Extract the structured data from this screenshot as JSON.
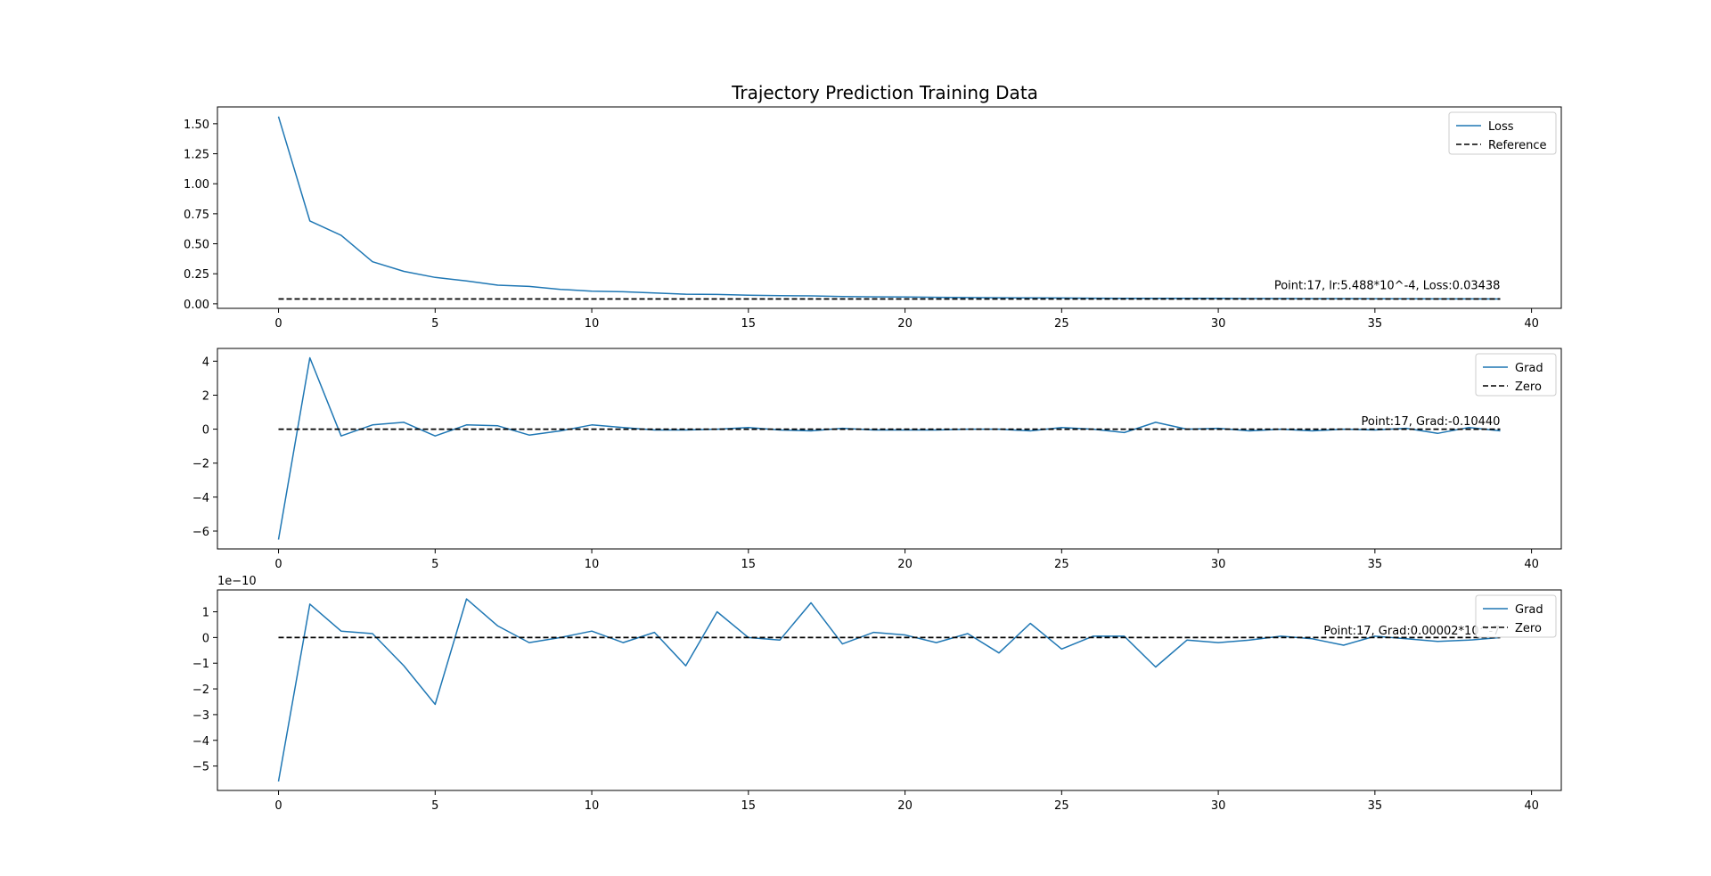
{
  "figure": {
    "title": "Trajectory Prediction Training Data"
  },
  "colors": {
    "series": "#1f77b4",
    "reference": "#000000",
    "axes": "#000000",
    "background": "#ffffff"
  },
  "chart_data": [
    {
      "type": "line",
      "x": [
        0,
        1,
        2,
        3,
        4,
        5,
        6,
        7,
        8,
        9,
        10,
        11,
        12,
        13,
        14,
        15,
        16,
        17,
        18,
        19,
        20,
        21,
        22,
        23,
        24,
        25,
        26,
        27,
        28,
        29,
        30,
        31,
        32,
        33,
        34,
        35,
        36,
        37,
        38,
        39
      ],
      "series": [
        {
          "name": "Loss",
          "style": "solid",
          "color": "#1f77b4",
          "values": [
            1.56,
            0.69,
            0.57,
            0.35,
            0.27,
            0.22,
            0.19,
            0.155,
            0.145,
            0.12,
            0.105,
            0.1,
            0.09,
            0.08,
            0.078,
            0.072,
            0.068,
            0.066,
            0.06,
            0.058,
            0.056,
            0.054,
            0.052,
            0.05,
            0.049,
            0.048,
            0.047,
            0.046,
            0.046,
            0.045,
            0.045,
            0.044,
            0.044,
            0.043,
            0.043,
            0.042,
            0.042,
            0.041,
            0.041,
            0.04
          ]
        },
        {
          "name": "Reference",
          "style": "dashed",
          "color": "#000000",
          "values": [
            0.04,
            0.04,
            0.04,
            0.04,
            0.04,
            0.04,
            0.04,
            0.04,
            0.04,
            0.04,
            0.04,
            0.04,
            0.04,
            0.04,
            0.04,
            0.04,
            0.04,
            0.04,
            0.04,
            0.04,
            0.04,
            0.04,
            0.04,
            0.04,
            0.04,
            0.04,
            0.04,
            0.04,
            0.04,
            0.04,
            0.04,
            0.04,
            0.04,
            0.04,
            0.04,
            0.04,
            0.04,
            0.04,
            0.04,
            0.04
          ]
        }
      ],
      "xlim": [
        -1.95,
        40.95
      ],
      "ylim": [
        -0.038,
        1.64
      ],
      "xticks": [
        0,
        5,
        10,
        15,
        20,
        25,
        30,
        35,
        40
      ],
      "yticks": [
        0,
        0.25,
        0.5,
        0.75,
        1.0,
        1.25,
        1.5
      ],
      "ytick_labels": [
        "0.00",
        "0.25",
        "0.50",
        "0.75",
        "1.00",
        "1.25",
        "1.50"
      ],
      "y_offset_label": "",
      "annotation": {
        "text": "Point:17, lr:5.488*10^-4, Loss:0.03438",
        "x": 39,
        "y": 0.12
      },
      "legend": "top-right",
      "grid": false
    },
    {
      "type": "line",
      "x": [
        0,
        1,
        2,
        3,
        4,
        5,
        6,
        7,
        8,
        9,
        10,
        11,
        12,
        13,
        14,
        15,
        16,
        17,
        18,
        19,
        20,
        21,
        22,
        23,
        24,
        25,
        26,
        27,
        28,
        29,
        30,
        31,
        32,
        33,
        34,
        35,
        36,
        37,
        38,
        39
      ],
      "series": [
        {
          "name": "Grad",
          "style": "solid",
          "color": "#1f77b4",
          "values": [
            -6.5,
            4.2,
            -0.4,
            0.25,
            0.4,
            -0.4,
            0.25,
            0.2,
            -0.35,
            -0.1,
            0.25,
            0.1,
            -0.05,
            -0.05,
            0.0,
            0.1,
            -0.05,
            -0.1,
            0.05,
            -0.05,
            -0.05,
            -0.05,
            0.0,
            0.0,
            -0.1,
            0.1,
            0.0,
            -0.2,
            0.4,
            0.0,
            0.05,
            -0.1,
            0.0,
            -0.1,
            0.0,
            -0.05,
            0.05,
            -0.25,
            0.1,
            -0.1
          ]
        },
        {
          "name": "Zero",
          "style": "dashed",
          "color": "#000000",
          "values": [
            0,
            0,
            0,
            0,
            0,
            0,
            0,
            0,
            0,
            0,
            0,
            0,
            0,
            0,
            0,
            0,
            0,
            0,
            0,
            0,
            0,
            0,
            0,
            0,
            0,
            0,
            0,
            0,
            0,
            0,
            0,
            0,
            0,
            0,
            0,
            0,
            0,
            0,
            0,
            0
          ]
        }
      ],
      "xlim": [
        -1.95,
        40.95
      ],
      "ylim": [
        -7.05,
        4.75
      ],
      "xticks": [
        0,
        5,
        10,
        15,
        20,
        25,
        30,
        35,
        40
      ],
      "yticks": [
        -6,
        -4,
        -2,
        0,
        2,
        4
      ],
      "ytick_labels": [
        "−6",
        "−4",
        "−2",
        "0",
        "2",
        "4"
      ],
      "y_offset_label": "",
      "annotation": {
        "text": "Point:17, Grad:-0.10440",
        "x": 39,
        "y": 0.25
      },
      "legend": "top-right",
      "grid": false
    },
    {
      "type": "line",
      "x": [
        0,
        1,
        2,
        3,
        4,
        5,
        6,
        7,
        8,
        9,
        10,
        11,
        12,
        13,
        14,
        15,
        16,
        17,
        18,
        19,
        20,
        21,
        22,
        23,
        24,
        25,
        26,
        27,
        28,
        29,
        30,
        31,
        32,
        33,
        34,
        35,
        36,
        37,
        38,
        39
      ],
      "series": [
        {
          "name": "Grad",
          "style": "solid",
          "color": "#1f77b4",
          "values": [
            -5.6,
            1.3,
            0.25,
            0.15,
            -1.1,
            -2.6,
            1.5,
            0.45,
            -0.2,
            0.0,
            0.25,
            -0.2,
            0.2,
            -1.1,
            1.0,
            0.0,
            -0.1,
            1.35,
            -0.25,
            0.2,
            0.1,
            -0.2,
            0.15,
            -0.6,
            0.55,
            -0.45,
            0.05,
            0.05,
            -1.15,
            -0.1,
            -0.2,
            -0.1,
            0.05,
            -0.05,
            -0.3,
            0.05,
            -0.05,
            -0.15,
            -0.1,
            0.0
          ]
        },
        {
          "name": "Zero",
          "style": "dashed",
          "color": "#000000",
          "values": [
            0,
            0,
            0,
            0,
            0,
            0,
            0,
            0,
            0,
            0,
            0,
            0,
            0,
            0,
            0,
            0,
            0,
            0,
            0,
            0,
            0,
            0,
            0,
            0,
            0,
            0,
            0,
            0,
            0,
            0,
            0,
            0,
            0,
            0,
            0,
            0,
            0,
            0,
            0,
            0
          ]
        }
      ],
      "xlim": [
        -1.95,
        40.95
      ],
      "ylim": [
        -5.95,
        1.85
      ],
      "xticks": [
        0,
        5,
        10,
        15,
        20,
        25,
        30,
        35,
        40
      ],
      "yticks": [
        -5,
        -4,
        -3,
        -2,
        -1,
        0,
        1
      ],
      "ytick_labels": [
        "−5",
        "−4",
        "−3",
        "−2",
        "−1",
        "0",
        "1"
      ],
      "y_offset_label": "1e−10",
      "annotation": {
        "text": "Point:17, Grad:0.00002*10^-7",
        "x": 39,
        "y": 0.12
      },
      "legend": "top-right",
      "grid": false
    }
  ]
}
